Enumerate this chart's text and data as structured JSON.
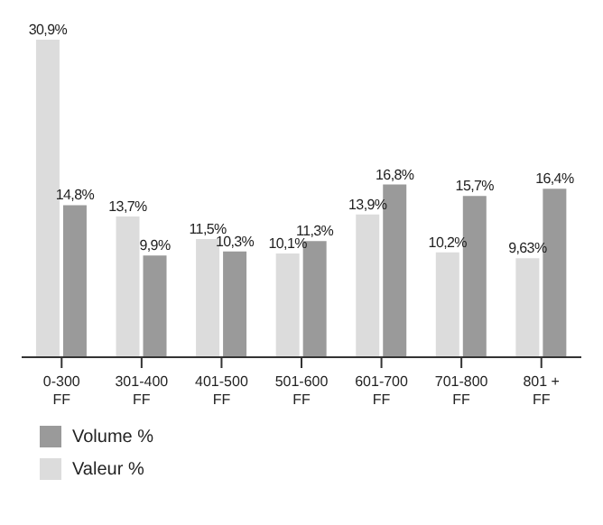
{
  "chart_data": {
    "type": "bar",
    "categories": [
      "0-300 FF",
      "301-400 FF",
      "401-500 FF",
      "501-600 FF",
      "601-700 FF",
      "701-800 FF",
      "801 + FF"
    ],
    "series": [
      {
        "name": "Valeur %",
        "color": "#dcdcdc",
        "values": [
          30.9,
          13.7,
          11.5,
          10.1,
          13.9,
          10.2,
          9.63
        ],
        "value_labels": [
          "30,9%",
          "13,7%",
          "11,5%",
          "10,1%",
          "13,9%",
          "10,2%",
          "9,63%"
        ]
      },
      {
        "name": "Volume %",
        "color": "#9a9a9a",
        "values": [
          14.8,
          9.9,
          10.3,
          11.3,
          16.8,
          15.7,
          16.4
        ],
        "value_labels": [
          "14,8%",
          "9,9%",
          "10,3%",
          "11,3%",
          "16,8%",
          "15,7%",
          "16,4%"
        ]
      }
    ],
    "legend": "bottom left",
    "grid": false
  }
}
